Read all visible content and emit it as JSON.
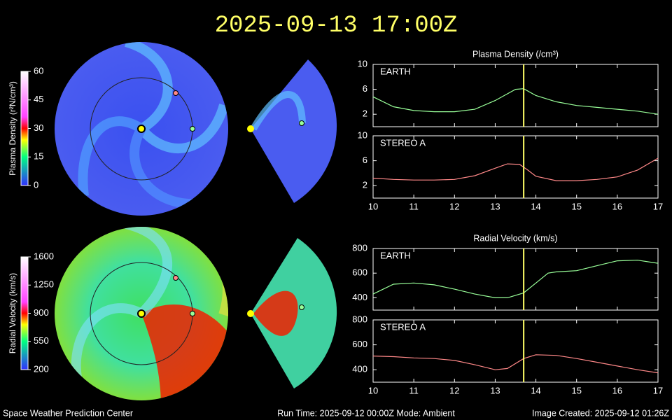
{
  "title": "2025-09-13 17:00Z",
  "colorbars": [
    {
      "label": "Plasma Density (r²N/cm³)",
      "ticks": [
        0,
        15,
        30,
        45,
        60
      ],
      "lim": [
        0,
        60
      ]
    },
    {
      "label": "Radial Velocity (km/s)",
      "ticks": [
        200,
        550,
        900,
        1250,
        1600
      ],
      "lim": [
        200,
        1600
      ]
    }
  ],
  "footer": {
    "left": "Space Weather Prediction Center",
    "center": "Run Time: 2025-09-12 00:00Z  Mode: Ambient",
    "right": "Image Created: 2025-09-12 01:26Z"
  },
  "chart_data": [
    {
      "type": "line",
      "title": "Plasma Density (/cm³)",
      "x": [
        10,
        10.5,
        11,
        11.5,
        12,
        12.5,
        13,
        13.5,
        13.7,
        14,
        14.5,
        15,
        15.5,
        16,
        16.5,
        17
      ],
      "series": [
        {
          "name": "EARTH",
          "color": "#99ff99",
          "values": [
            4.8,
            3.2,
            2.6,
            2.4,
            2.4,
            2.8,
            4.2,
            6,
            6.1,
            5,
            4,
            3.4,
            3.1,
            2.8,
            2.5,
            2
          ]
        }
      ],
      "xlim": [
        10,
        17
      ],
      "xticks": [
        10,
        11,
        12,
        13,
        14,
        15,
        16,
        17
      ],
      "show_xtick_labels": false,
      "ylim": [
        0,
        10
      ],
      "yticks": [
        2,
        6,
        10
      ],
      "marker": {
        "x": 13.7,
        "color": "#ffff66"
      }
    },
    {
      "type": "line",
      "x": [
        10,
        10.5,
        11,
        11.5,
        12,
        12.5,
        13,
        13.3,
        13.6,
        13.8,
        14,
        14.5,
        15,
        15.5,
        16,
        16.5,
        17
      ],
      "series": [
        {
          "name": "STEREO A",
          "color": "#ff8888",
          "values": [
            3.2,
            3,
            2.9,
            2.9,
            3,
            3.6,
            4.8,
            5.5,
            5.4,
            4.5,
            3.5,
            2.8,
            2.8,
            3,
            3.4,
            4.5,
            6.4
          ]
        }
      ],
      "xlim": [
        10,
        17
      ],
      "xticks": [
        10,
        11,
        12,
        13,
        14,
        15,
        16,
        17
      ],
      "show_xtick_labels": true,
      "ylim": [
        0,
        10
      ],
      "yticks": [
        2,
        6,
        10
      ],
      "marker": {
        "x": 13.7,
        "color": "#ffff66"
      }
    },
    {
      "type": "line",
      "title": "Radial Velocity (km/s)",
      "x": [
        10,
        10.5,
        11,
        11.5,
        12,
        12.5,
        13,
        13.3,
        13.7,
        14,
        14.3,
        14.5,
        15,
        15.5,
        16,
        16.5,
        17
      ],
      "series": [
        {
          "name": "EARTH",
          "color": "#99ff99",
          "values": [
            430,
            510,
            520,
            505,
            470,
            430,
            400,
            400,
            440,
            520,
            600,
            610,
            620,
            660,
            700,
            705,
            680
          ]
        }
      ],
      "xlim": [
        10,
        17
      ],
      "xticks": [
        10,
        11,
        12,
        13,
        14,
        15,
        16,
        17
      ],
      "show_xtick_labels": false,
      "ylim": [
        300,
        800
      ],
      "yticks": [
        400,
        600,
        800
      ],
      "marker": {
        "x": 13.7,
        "color": "#ffff66"
      }
    },
    {
      "type": "line",
      "x": [
        10,
        10.5,
        11,
        11.5,
        12,
        12.5,
        13,
        13.3,
        13.7,
        14,
        14.5,
        15,
        15.5,
        16,
        16.5,
        17
      ],
      "series": [
        {
          "name": "STEREO A",
          "color": "#ff8888",
          "values": [
            510,
            505,
            495,
            490,
            475,
            440,
            400,
            410,
            490,
            520,
            515,
            490,
            460,
            430,
            400,
            375
          ]
        }
      ],
      "xlim": [
        10,
        17
      ],
      "xticks": [
        10,
        11,
        12,
        13,
        14,
        15,
        16,
        17
      ],
      "show_xtick_labels": true,
      "ylim": [
        300,
        800
      ],
      "yticks": [
        400,
        600,
        800
      ],
      "marker": {
        "x": 13.7,
        "color": "#ffff66"
      }
    }
  ]
}
